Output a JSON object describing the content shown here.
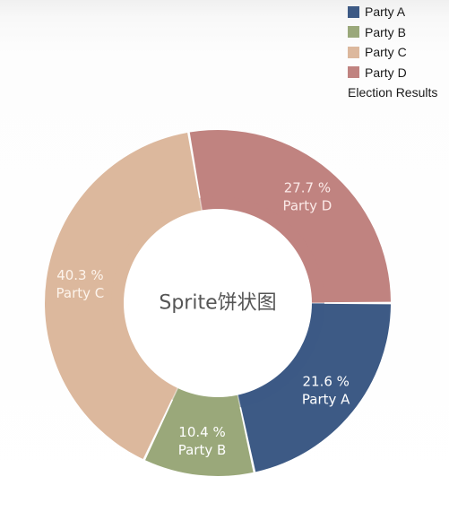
{
  "chart_data": {
    "type": "pie",
    "title": "Election Results",
    "center_label": "Sprite饼状图",
    "legend_position": "top-right",
    "slices": [
      {
        "name": "Party A",
        "value": 21.6,
        "value_label": "21.6 %",
        "color": "#3d5a85",
        "label_color": "#ffffff"
      },
      {
        "name": "Party B",
        "value": 10.4,
        "value_label": "10.4 %",
        "color": "#9aa87a",
        "label_color": "#ffffff"
      },
      {
        "name": "Party C",
        "value": 40.3,
        "value_label": "40.3 %",
        "color": "#dcb89d",
        "label_color": "#fdf4ec"
      },
      {
        "name": "Party D",
        "value": 27.7,
        "value_label": "27.7 %",
        "color": "#c08380",
        "label_color": "#fbe9e7"
      }
    ]
  }
}
